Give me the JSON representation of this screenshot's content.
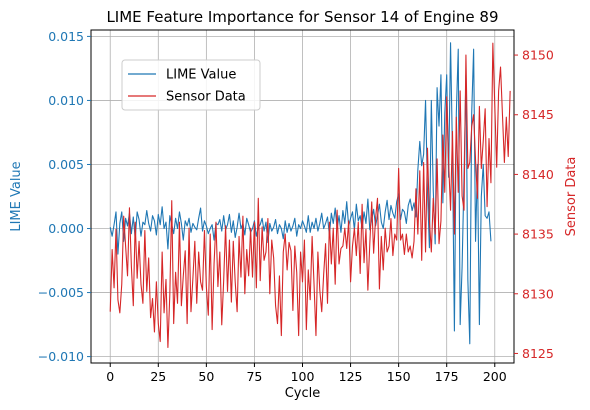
{
  "chart_data": {
    "type": "line",
    "title": "LIME Feature Importance for Sensor 14 of Engine 89",
    "xlabel": "Cycle",
    "ylabel_left": "LIME Value",
    "ylabel_right": "Sensor Data",
    "xlim": [
      -10,
      210
    ],
    "ylim_left": [
      -0.0105,
      0.0155
    ],
    "ylim_right": [
      8124.2,
      8152.1
    ],
    "x_ticks": [
      0,
      25,
      50,
      75,
      100,
      125,
      150,
      175,
      200
    ],
    "y_ticks_left": [
      -0.01,
      -0.005,
      0.0,
      0.005,
      0.01,
      0.015
    ],
    "y_tick_labels_left": [
      "−0.010",
      "−0.005",
      "0.000",
      "0.005",
      "0.010",
      "0.015"
    ],
    "y_ticks_right": [
      8125,
      8130,
      8135,
      8140,
      8145,
      8150
    ],
    "grid": true,
    "legend_position": "upper-left",
    "colors": {
      "lime": "#1f77b4",
      "sensor": "#d62728",
      "grid": "#b0b0b0",
      "axis": "#000000"
    },
    "series": [
      {
        "name": "LIME Value",
        "axis": "left",
        "color": "#1f77b4",
        "x_start": 0,
        "x_step": 1,
        "values": [
          0.0001,
          -0.0006,
          0.0003,
          0.0013,
          -0.002,
          0.0004,
          0.0013,
          -0.001,
          0.0008,
          0.0002,
          0.0012,
          -0.0004,
          0.0009,
          -0.0008,
          0.0013,
          0.0007,
          -0.0006,
          0.0005,
          0.0003,
          0.0014,
          0.0004,
          -0.0002,
          0.001,
          0.0006,
          -0.0005,
          0.0011,
          0.0003,
          0.0017,
          0.0,
          0.0005,
          -0.0016,
          0.001,
          0.0003,
          -0.0004,
          0.0008,
          0.0,
          0.0013,
          0.0004,
          -0.0009,
          0.0006,
          0.0002,
          0.0008,
          -0.0003,
          0.0004,
          0.0001,
          -0.0001,
          0.0008,
          0.0016,
          -0.0002,
          0.0006,
          0.0002,
          -0.0004,
          0.0,
          0.0003,
          -0.0009,
          0.0004,
          0.0003,
          0.0007,
          -0.0002,
          0.001,
          -0.0001,
          0.0003,
          0.0011,
          -0.0003,
          0.0006,
          -0.0007,
          0.0001,
          0.0012,
          0.0,
          0.0004,
          -0.0005,
          0.0008,
          0.0003,
          -0.0003,
          0.0,
          0.0006,
          -0.0006,
          0.0001,
          0.0003,
          0.0008,
          -0.0002,
          0.0005,
          -0.0011,
          0.0004,
          -0.0002,
          0.0001,
          0.0007,
          -0.0004,
          0.0003,
          0.0,
          -0.0008,
          0.0006,
          -0.0003,
          0.0004,
          -0.0002,
          0.0002,
          0.0008,
          -0.0006,
          0.0003,
          0.0,
          0.0006,
          0.0002,
          -0.0003,
          0.001,
          -0.0003,
          0.0005,
          0.0,
          0.0008,
          -0.0002,
          0.0004,
          0.0012,
          0.0,
          0.0004,
          0.0009,
          -0.0005,
          0.0012,
          0.0004,
          0.0016,
          0.0,
          0.001,
          -0.0003,
          0.0014,
          0.0004,
          0.0021,
          0.0002,
          0.0008,
          0.0013,
          -0.0001,
          0.0019,
          0.0006,
          0.001,
          0.0,
          0.0013,
          0.0004,
          0.0023,
          -0.0001,
          0.0007,
          0.0015,
          0.0002,
          0.001,
          0.0019,
          0.0005,
          0.0,
          0.0013,
          0.0022,
          0.0007,
          0.0018,
          0.0012,
          0.0008,
          0.0021,
          0.0027,
          0.0007,
          0.0015,
          0.0013,
          0.0004,
          0.0018,
          0.0023,
          0.0014,
          0.002,
          0.0009,
          0.0046,
          0.0068,
          0.0049,
          0.0058,
          0.01,
          0.003,
          -0.0015,
          0.01,
          0.003,
          -0.0012,
          0.011,
          0.008,
          0.012,
          0.002,
          0.009,
          0.012,
          0.004,
          0.0145,
          0.006,
          -0.008,
          0.009,
          0.014,
          -0.0075,
          -0.003,
          0.004,
          0.012,
          -0.004,
          -0.009,
          0.009,
          0.014,
          -0.001,
          0.005,
          -0.0075,
          0.0025,
          0.005,
          0.001,
          0.0008,
          0.0013,
          -0.001
        ]
      },
      {
        "name": "Sensor Data",
        "axis": "right",
        "color": "#d62728",
        "x_start": 0,
        "x_step": 1,
        "values": [
          8128.5,
          8133.7,
          8130.5,
          8135.4,
          8129.5,
          8128.4,
          8130.8,
          8136.5,
          8134.0,
          8131.5,
          8137.2,
          8132.3,
          8129.0,
          8136.0,
          8131.3,
          8134.4,
          8130.8,
          8129.2,
          8135.3,
          8130.2,
          8133.0,
          8128.0,
          8129.6,
          8126.8,
          8131.0,
          8127.5,
          8126.0,
          8133.5,
          8128.4,
          8131.2,
          8125.5,
          8130.0,
          8137.8,
          8127.5,
          8131.8,
          8129.2,
          8136.0,
          8129.0,
          8131.5,
          8133.6,
          8127.5,
          8135.5,
          8128.5,
          8131.3,
          8134.4,
          8129.2,
          8133.5,
          8131.0,
          8130.3,
          8135.3,
          8130.6,
          8128.2,
          8135.0,
          8127.0,
          8132.5,
          8136.0,
          8130.6,
          8133.5,
          8127.4,
          8131.1,
          8135.7,
          8130.2,
          8134.5,
          8129.3,
          8134.4,
          8131.0,
          8128.5,
          8134.8,
          8131.4,
          8136.5,
          8130.0,
          8133.7,
          8131.5,
          8135.5,
          8131.4,
          8136.0,
          8130.5,
          8138.0,
          8131.1,
          8135.6,
          8132.8,
          8133.5,
          8136.3,
          8130.0,
          8134.5,
          8133.0,
          8129.0,
          8127.5,
          8131.5,
          8126.5,
          8133.5,
          8135.0,
          8132.0,
          8134.3,
          8133.6,
          8128.6,
          8134.0,
          8131.8,
          8126.5,
          8133.5,
          8131.0,
          8134.5,
          8127.0,
          8132.0,
          8129.5,
          8134.8,
          8130.8,
          8126.5,
          8133.5,
          8130.3,
          8128.5,
          8131.6,
          8134.2,
          8129.2,
          8136.0,
          8132.5,
          8135.5,
          8130.8,
          8137.0,
          8132.5,
          8133.8,
          8134.0,
          8135.5,
          8133.8,
          8136.1,
          8131.0,
          8134.0,
          8135.5,
          8133.2,
          8136.0,
          8131.7,
          8137.5,
          8132.6,
          8135.4,
          8130.3,
          8134.2,
          8137.7,
          8133.4,
          8136.3,
          8138.0,
          8130.4,
          8134.8,
          8132.0,
          8135.5,
          8133.5,
          8134.0,
          8136.3,
          8133.2,
          8135.0,
          8134.5,
          8140.5,
          8134.5,
          8135.0,
          8133.3,
          8135.0,
          8133.5,
          8134.0,
          8133.0,
          8134.4,
          8138.8,
          8135.0,
          8140.3,
          8132.8,
          8141.0,
          8133.5,
          8142.2,
          8136.2,
          8133.5,
          8138.0,
          8135.0,
          8141.3,
          8134.2,
          8136.1,
          8143.3,
          8138.5,
          8146.5,
          8141.0,
          8137.0,
          8143.6,
          8135.0,
          8144.8,
          8138.5,
          8147.0,
          8138.2,
          8137.0,
          8150.0,
          8140.5,
          8141.0,
          8144.0,
          8145.0,
          8141.2,
          8138.0,
          8145.7,
          8140.5,
          8142.8,
          8145.5,
          8137.3,
          8143.0,
          8139.3,
          8151.0,
          8145.8,
          8140.6,
          8147.0,
          8149.0,
          8145.0,
          8141.0,
          8144.8,
          8141.5,
          8147.0
        ]
      }
    ]
  }
}
